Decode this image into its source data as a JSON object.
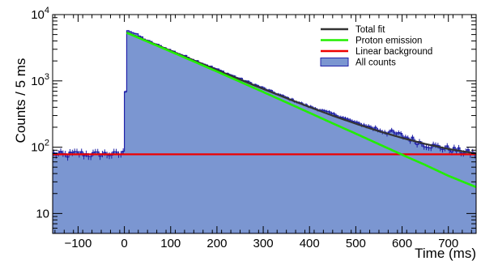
{
  "chart_data": {
    "type": "histogram-fit",
    "xlabel": "Time (ms)",
    "ylabel": "Counts / 5 ms",
    "xlim": [
      -155,
      760
    ],
    "ylim": [
      5,
      10000
    ],
    "yscale": "log",
    "bin_width": 5,
    "x_ticks": [
      -100,
      0,
      100,
      200,
      300,
      400,
      500,
      600,
      700
    ],
    "x_tick_labels": [
      "−100",
      "0",
      "100",
      "200",
      "300",
      "400",
      "500",
      "600",
      "700"
    ],
    "y_ticks": [
      10,
      100,
      1000,
      10000
    ],
    "y_tick_labels": {
      "10": {
        "base": "10",
        "exp": ""
      },
      "100": {
        "base": "10",
        "exp": "2"
      },
      "1000": {
        "base": "10",
        "exp": "3"
      },
      "10000": {
        "base": "10",
        "exp": "4"
      }
    },
    "legend_position": "top-right",
    "series": [
      {
        "key": "total",
        "name": "Total fit",
        "color": "#333333",
        "kind": "line",
        "x": [
          5,
          50,
          100,
          150,
          200,
          250,
          300,
          350,
          400,
          450,
          500,
          550,
          600,
          650,
          700,
          760
        ],
        "y": [
          5400,
          3990,
          2852,
          2040,
          1460,
          1048,
          756,
          550,
          403,
          299,
          226,
          174,
          138,
          112,
          94,
          80
        ]
      },
      {
        "key": "proton",
        "name": "Proton emission",
        "color": "#22ee00",
        "kind": "line",
        "x": [
          5,
          50,
          100,
          150,
          200,
          250,
          300,
          350,
          400,
          450,
          500,
          550,
          600,
          650,
          700,
          760
        ],
        "y": [
          5320,
          3912,
          2775,
          1963,
          1385,
          970,
          680,
          474,
          330,
          229,
          160,
          111,
          77,
          54,
          37,
          25
        ]
      },
      {
        "key": "background",
        "name": "Linear background",
        "color": "#ee0000",
        "kind": "line",
        "x": [
          -155,
          760
        ],
        "y": [
          78,
          78
        ]
      },
      {
        "key": "counts",
        "name": "All counts",
        "color": "#7b96d1",
        "edge": "#2222aa",
        "kind": "histogram",
        "x": [
          -150,
          -125,
          -100,
          -75,
          -50,
          -25,
          -5,
          0,
          5,
          10,
          25,
          50,
          100,
          150,
          200,
          250,
          300,
          350,
          400,
          450,
          500,
          550,
          600,
          650,
          700,
          755
        ],
        "y": [
          80,
          76,
          82,
          77,
          80,
          78,
          80,
          82,
          6000,
          5700,
          5100,
          4050,
          2900,
          2100,
          1500,
          1080,
          780,
          560,
          410,
          320,
          235,
          185,
          150,
          110,
          95,
          80
        ]
      }
    ]
  }
}
